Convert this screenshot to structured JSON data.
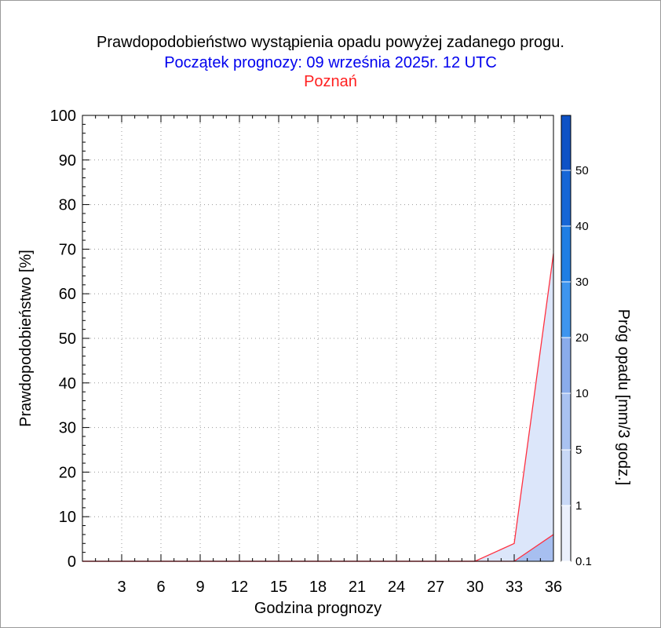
{
  "chart_data": {
    "type": "area",
    "title": "Prawdopodobieństwo wystąpienia opadu powyżej zadanego progu.",
    "subtitle": "Początek prognozy: 09 września 2025r. 12 UTC",
    "location": "Poznań",
    "xlabel": "Godzina prognozy",
    "ylabel": "Prawdopodobieństwo [%]",
    "x_ticks": [
      "3",
      "6",
      "9",
      "12",
      "15",
      "18",
      "21",
      "24",
      "27",
      "30",
      "33",
      "36"
    ],
    "y_ticks": [
      "0",
      "10",
      "20",
      "30",
      "40",
      "50",
      "60",
      "70",
      "80",
      "90",
      "100"
    ],
    "xlim": [
      0,
      36
    ],
    "ylim": [
      0,
      100
    ],
    "grid": true,
    "x": [
      0,
      3,
      6,
      9,
      12,
      15,
      18,
      21,
      24,
      27,
      30,
      33,
      36
    ],
    "series": [
      {
        "name": "0.1",
        "values": [
          0,
          0,
          0,
          0,
          0,
          0,
          0,
          0,
          0,
          0,
          0,
          4,
          69
        ],
        "color": "#dce6fa"
      },
      {
        "name": "1",
        "values": [
          0,
          0,
          0,
          0,
          0,
          0,
          0,
          0,
          0,
          0,
          0,
          0,
          6
        ],
        "color": "#a7bff0"
      }
    ],
    "outline_color": "#ff3040",
    "colorbar": {
      "label": "Próg opadu [mm/3 godz.]",
      "ticks": [
        "0.1",
        "1",
        "5",
        "10",
        "20",
        "30",
        "40",
        "50"
      ],
      "colors": [
        "#ebf0fc",
        "#c8d8f6",
        "#a9c2f1",
        "#8aaceb",
        "#3e95ee",
        "#1f7ee4",
        "#1666d6",
        "#0e52c6",
        "#0840b0"
      ]
    }
  }
}
